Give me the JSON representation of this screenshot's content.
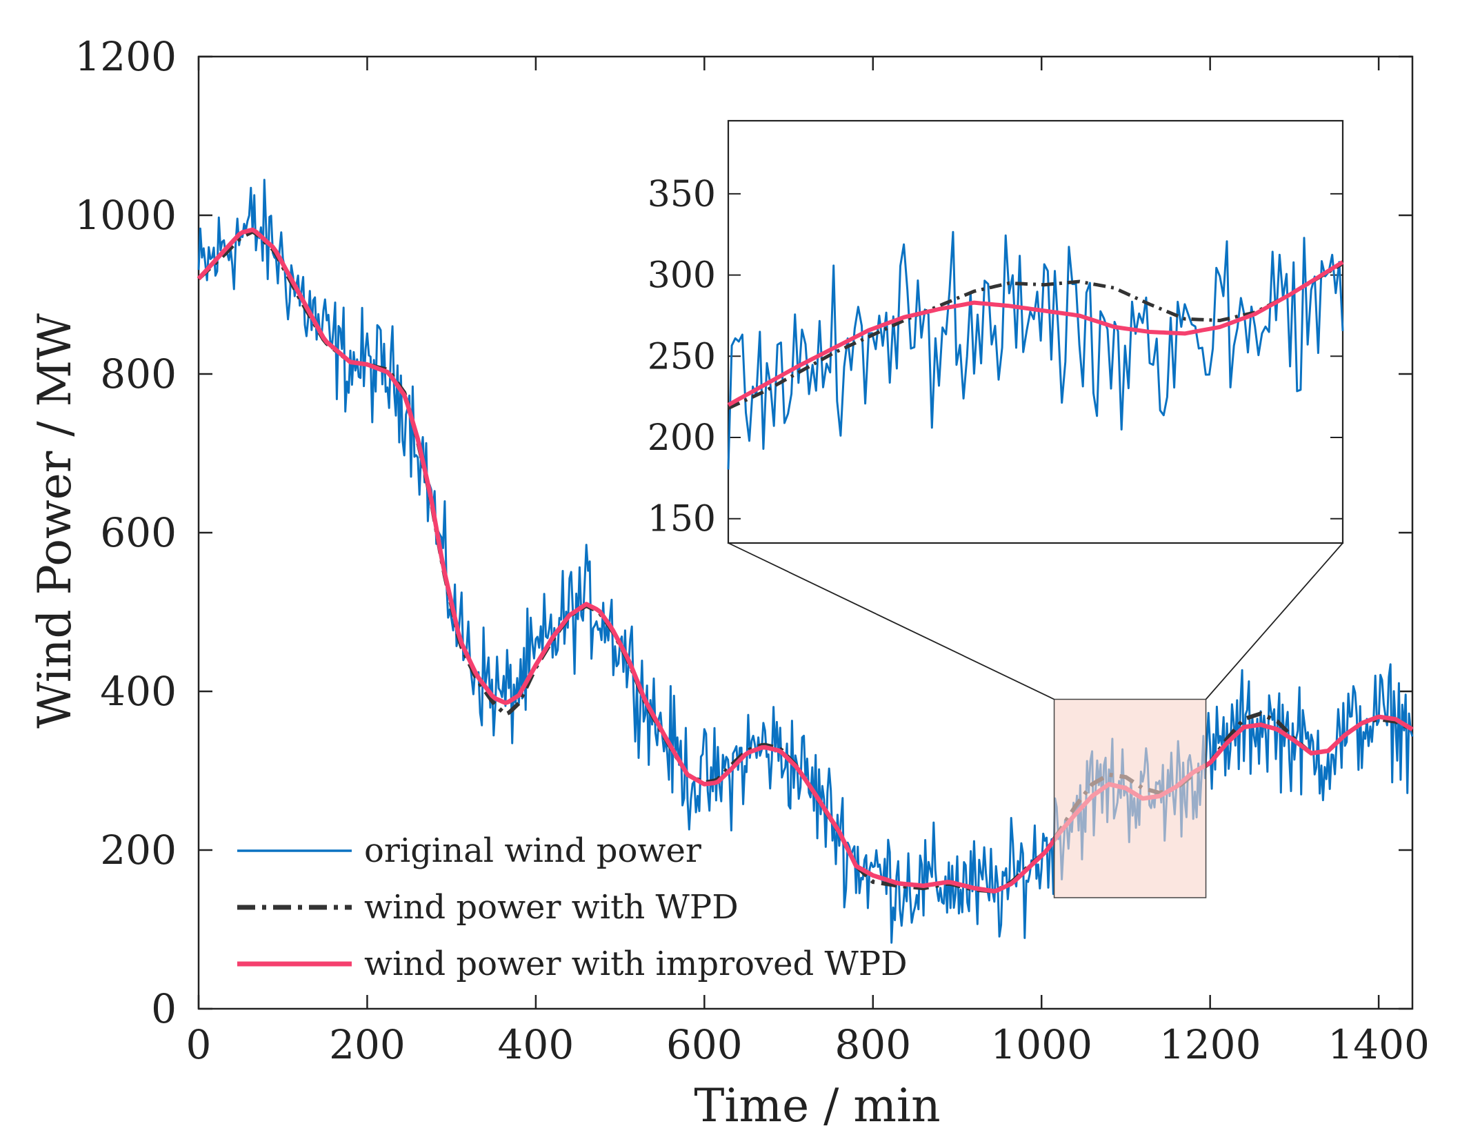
{
  "chart_data": {
    "type": "line",
    "xlabel": "Time / min",
    "ylabel": "Wind Power / MW",
    "xlim": [
      0,
      1440
    ],
    "ylim": [
      0,
      1200
    ],
    "xticks": [
      0,
      200,
      400,
      600,
      800,
      1000,
      1200,
      1400
    ],
    "yticks": [
      0,
      200,
      400,
      600,
      800,
      1000,
      1200
    ],
    "colors": {
      "original": "#0A72C2",
      "wpd": "#333333",
      "improved": "#F5406E",
      "zoom_box": "#F9D6CC"
    },
    "legend": {
      "position": "bottom-left",
      "entries": [
        "original wind power",
        "wind power with WPD",
        "wind power with improved WPD"
      ]
    },
    "series": [
      {
        "name": "original wind power",
        "style": "solid-thin",
        "noise_amplitude": 120,
        "x": [
          0,
          30,
          50,
          65,
          90,
          120,
          150,
          180,
          200,
          225,
          245,
          260,
          275,
          290,
          310,
          330,
          350,
          365,
          380,
          400,
          420,
          440,
          460,
          475,
          490,
          510,
          530,
          555,
          580,
          600,
          615,
          630,
          650,
          670,
          690,
          710,
          730,
          760,
          780,
          800,
          830,
          860,
          890,
          920,
          945,
          965,
          985,
          1005,
          1020,
          1040,
          1060,
          1080,
          1100,
          1120,
          1140,
          1160,
          1180,
          1200,
          1220,
          1240,
          1260,
          1280,
          1300,
          1320,
          1340,
          1360,
          1380,
          1400,
          1420,
          1440
        ],
        "values": [
          925,
          958,
          975,
          985,
          958,
          900,
          845,
          815,
          810,
          798,
          770,
          720,
          650,
          560,
          470,
          430,
          400,
          390,
          410,
          440,
          470,
          498,
          510,
          505,
          480,
          440,
          390,
          340,
          295,
          285,
          285,
          298,
          320,
          330,
          325,
          305,
          275,
          225,
          185,
          172,
          160,
          155,
          160,
          150,
          148,
          160,
          180,
          200,
          225,
          250,
          270,
          283,
          280,
          268,
          270,
          282,
          300,
          310,
          335,
          355,
          360,
          355,
          340,
          320,
          325,
          345,
          360,
          368,
          365,
          350
        ]
      },
      {
        "name": "wind power with WPD",
        "style": "dash-dot",
        "x": [
          0,
          30,
          50,
          65,
          90,
          120,
          150,
          180,
          200,
          225,
          245,
          260,
          275,
          290,
          310,
          330,
          350,
          365,
          380,
          400,
          420,
          440,
          460,
          475,
          490,
          510,
          530,
          555,
          580,
          600,
          615,
          630,
          650,
          670,
          690,
          710,
          730,
          760,
          780,
          800,
          830,
          860,
          890,
          920,
          945,
          965,
          985,
          1005,
          1020,
          1040,
          1060,
          1080,
          1100,
          1120,
          1140,
          1160,
          1180,
          1200,
          1220,
          1240,
          1260,
          1280,
          1300,
          1320,
          1340,
          1360,
          1380,
          1400,
          1420,
          1440
        ],
        "values": [
          920,
          950,
          972,
          980,
          955,
          895,
          840,
          815,
          812,
          805,
          775,
          715,
          645,
          555,
          460,
          415,
          385,
          370,
          385,
          430,
          465,
          495,
          508,
          500,
          478,
          438,
          385,
          338,
          295,
          285,
          288,
          305,
          325,
          333,
          328,
          305,
          272,
          222,
          180,
          160,
          155,
          152,
          158,
          150,
          148,
          160,
          180,
          198,
          222,
          255,
          283,
          295,
          292,
          278,
          272,
          278,
          295,
          310,
          340,
          365,
          372,
          362,
          340,
          322,
          325,
          345,
          360,
          365,
          362,
          352
        ]
      },
      {
        "name": "wind power with improved WPD",
        "style": "solid-thick",
        "x": [
          0,
          30,
          50,
          65,
          90,
          120,
          150,
          180,
          200,
          225,
          245,
          260,
          275,
          290,
          310,
          330,
          350,
          365,
          380,
          400,
          420,
          440,
          460,
          475,
          490,
          510,
          530,
          555,
          580,
          600,
          615,
          630,
          650,
          670,
          690,
          710,
          730,
          760,
          780,
          800,
          830,
          860,
          890,
          920,
          945,
          965,
          985,
          1005,
          1020,
          1040,
          1060,
          1080,
          1100,
          1120,
          1140,
          1160,
          1180,
          1200,
          1220,
          1240,
          1260,
          1280,
          1300,
          1320,
          1340,
          1360,
          1380,
          1400,
          1420,
          1440
        ],
        "values": [
          920,
          955,
          978,
          982,
          958,
          900,
          842,
          815,
          812,
          802,
          772,
          718,
          648,
          558,
          465,
          420,
          392,
          385,
          395,
          433,
          468,
          496,
          510,
          502,
          480,
          440,
          388,
          340,
          295,
          283,
          285,
          300,
          322,
          330,
          325,
          304,
          273,
          223,
          180,
          168,
          158,
          155,
          160,
          152,
          148,
          158,
          178,
          198,
          220,
          245,
          268,
          283,
          278,
          265,
          268,
          280,
          298,
          310,
          335,
          355,
          358,
          352,
          338,
          322,
          325,
          345,
          360,
          368,
          365,
          352
        ]
      }
    ],
    "zoom_region": {
      "xlim": [
        1015,
        1195
      ],
      "ylim": [
        140,
        390
      ]
    },
    "inset": {
      "xlim": [
        1020,
        1195
      ],
      "ylim": [
        135,
        395
      ],
      "yticks": [
        150,
        200,
        250,
        300,
        350
      ],
      "series": [
        {
          "name": "original wind power",
          "style": "solid-thin",
          "x": [
            1020,
            1060,
            1100,
            1140,
            1195
          ],
          "values": [
            230,
            255,
            275,
            265,
            290
          ],
          "noise_amplitude": 60
        },
        {
          "name": "wind power with WPD",
          "style": "dash-dot",
          "x": [
            1020,
            1030,
            1040,
            1050,
            1060,
            1070,
            1080,
            1090,
            1100,
            1110,
            1120,
            1130,
            1140,
            1150,
            1160,
            1170,
            1180,
            1195
          ],
          "values": [
            218,
            228,
            240,
            252,
            262,
            272,
            281,
            290,
            295,
            294,
            296,
            292,
            282,
            273,
            272,
            277,
            288,
            307
          ]
        },
        {
          "name": "wind power with improved WPD",
          "style": "solid-thick",
          "x": [
            1020,
            1030,
            1040,
            1050,
            1060,
            1070,
            1080,
            1090,
            1100,
            1110,
            1120,
            1130,
            1140,
            1150,
            1160,
            1170,
            1180,
            1195
          ],
          "values": [
            220,
            232,
            244,
            255,
            266,
            274,
            279,
            283,
            281,
            278,
            275,
            268,
            265,
            264,
            268,
            276,
            288,
            308
          ]
        }
      ]
    }
  }
}
